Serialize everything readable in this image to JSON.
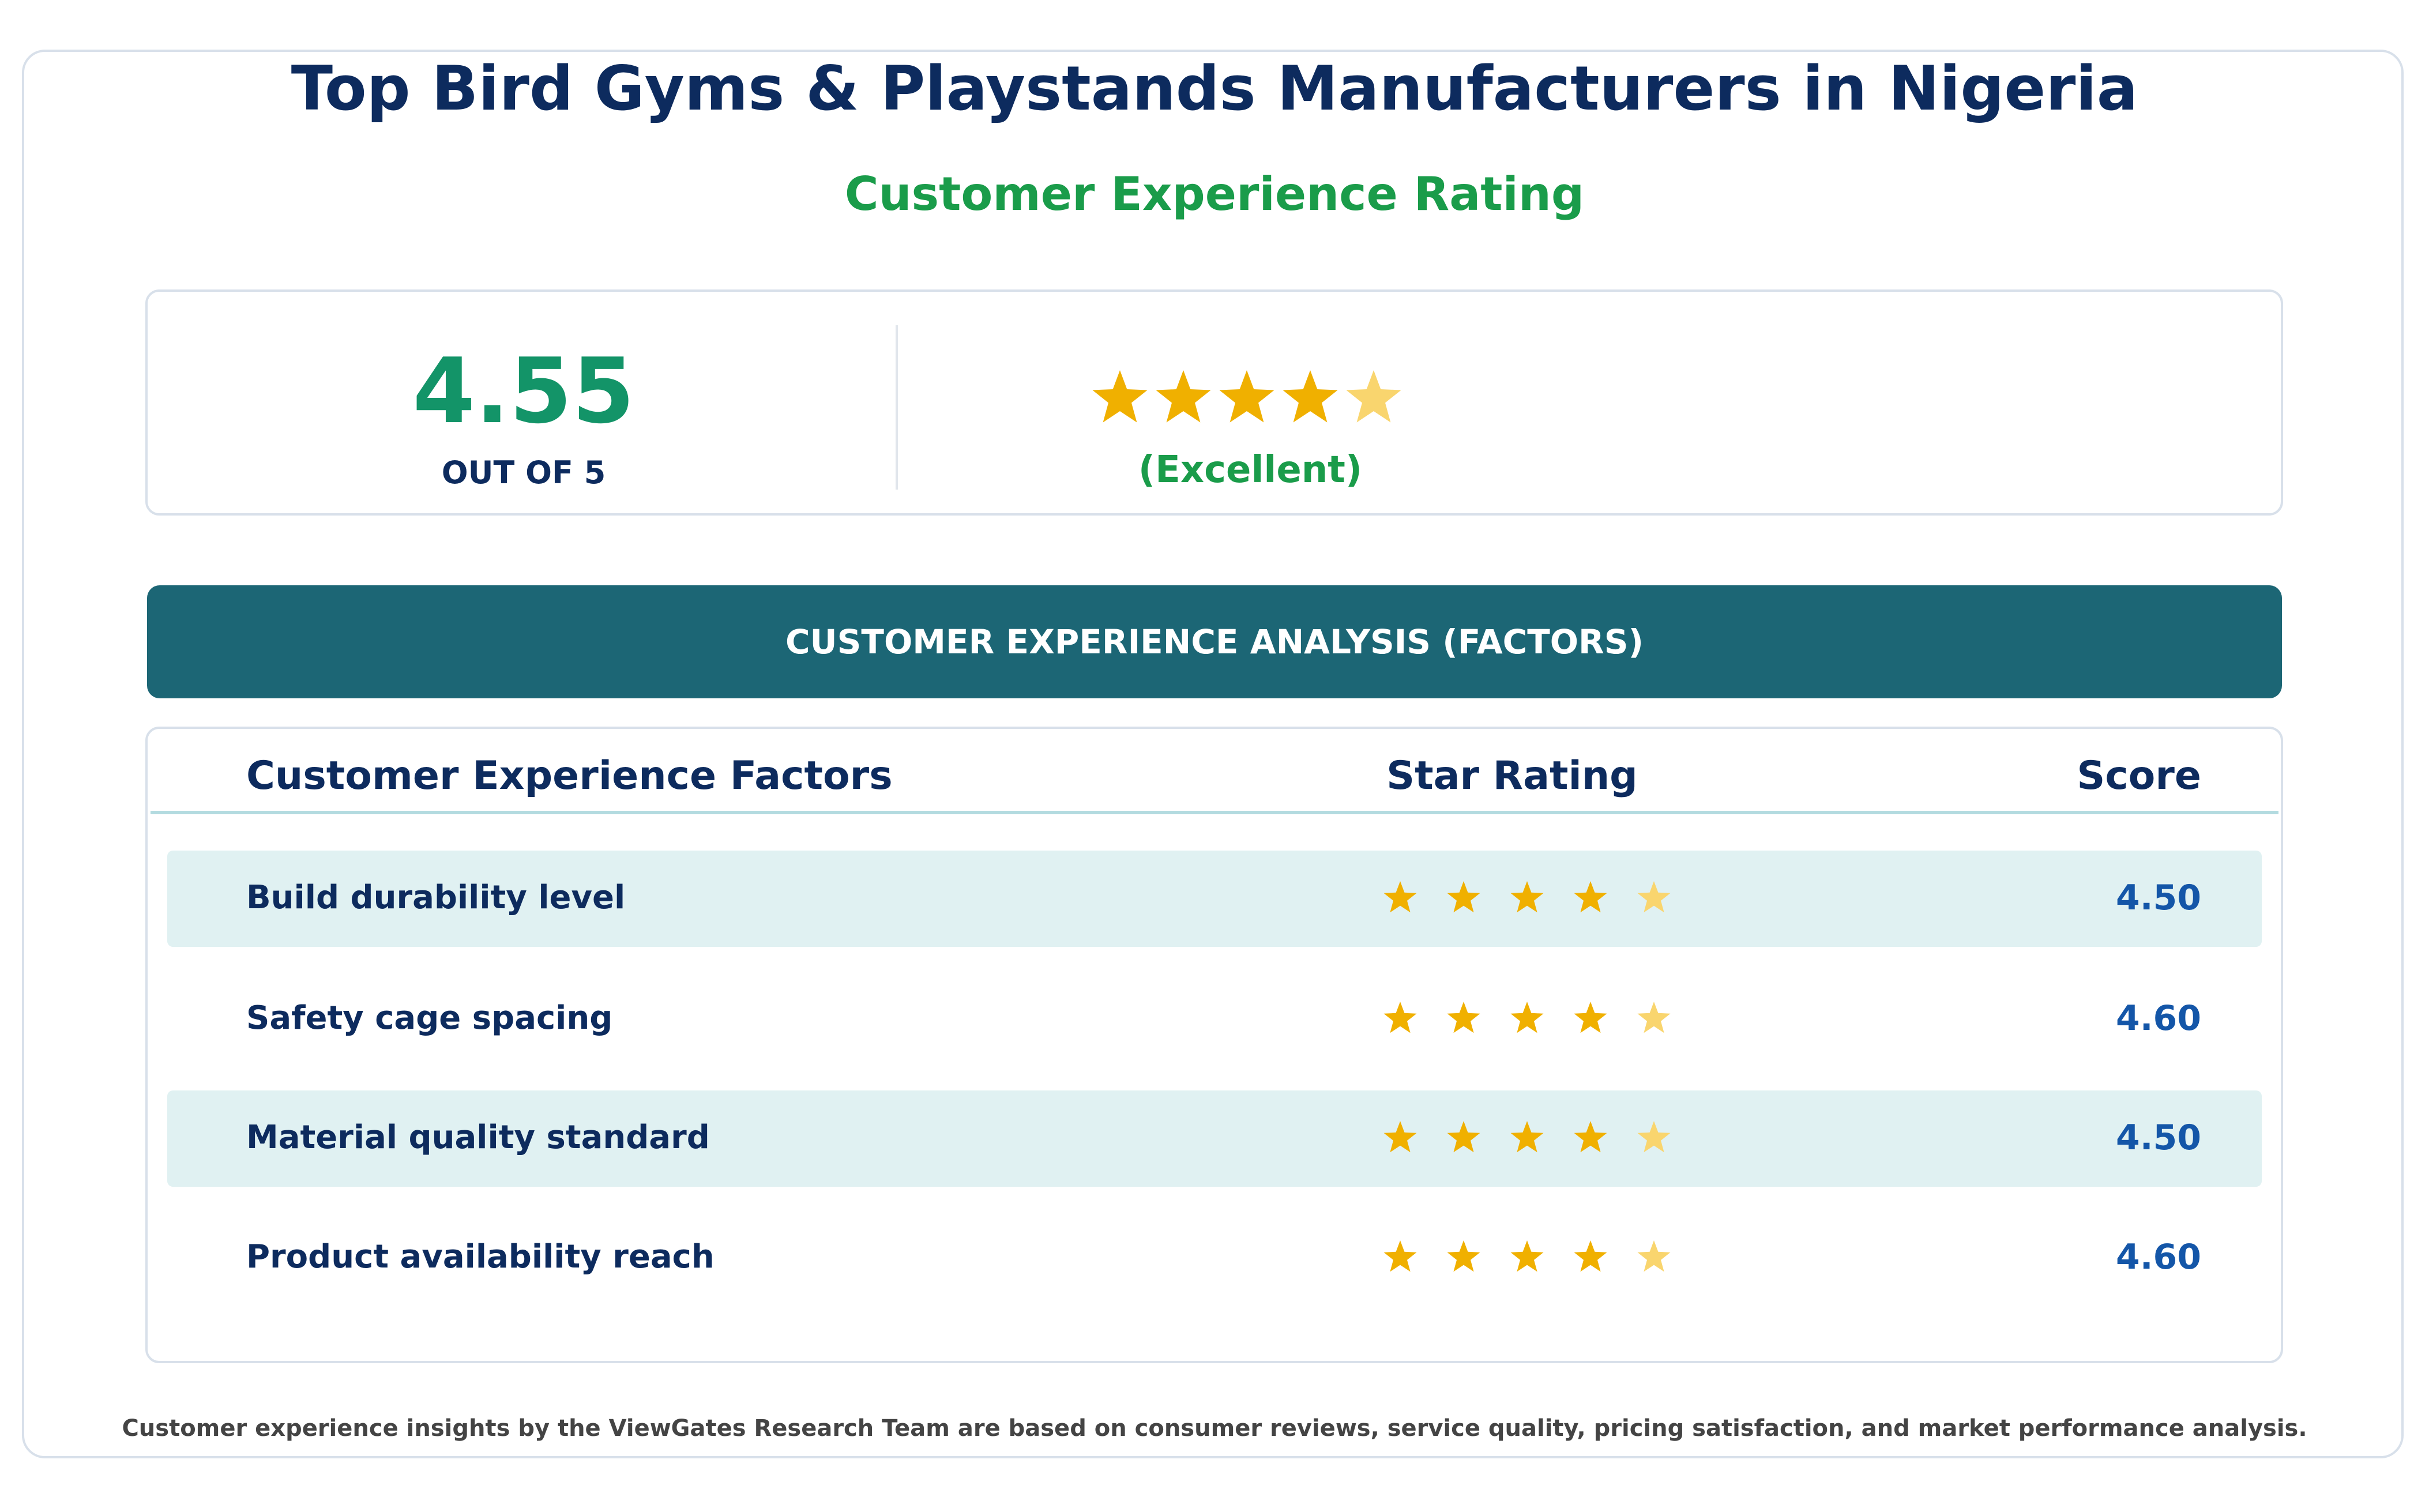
{
  "header": {
    "title": "Top Bird Gyms & Playstands Manufacturers in Nigeria",
    "subtitle": "Customer Experience Rating"
  },
  "summary": {
    "score": "4.55",
    "out_of": "OUT OF 5",
    "label": "(Excellent)"
  },
  "analysis": {
    "title": "CUSTOMER EXPERIENCE ANALYSIS (FACTORS)"
  },
  "table": {
    "headers": [
      "Customer Experience Factors",
      "Star Rating",
      "Score"
    ],
    "rows": [
      [
        "Build durability level",
        "4.50"
      ],
      [
        "Safety cage spacing",
        "4.60"
      ],
      [
        "Material quality standard",
        "4.50"
      ],
      [
        "Product availability reach",
        "4.60"
      ]
    ]
  },
  "footer": {
    "note": "Customer experience insights by the ViewGates Research Team are based on consumer reviews, service quality, pricing satisfaction, and market performance analysis."
  }
}
